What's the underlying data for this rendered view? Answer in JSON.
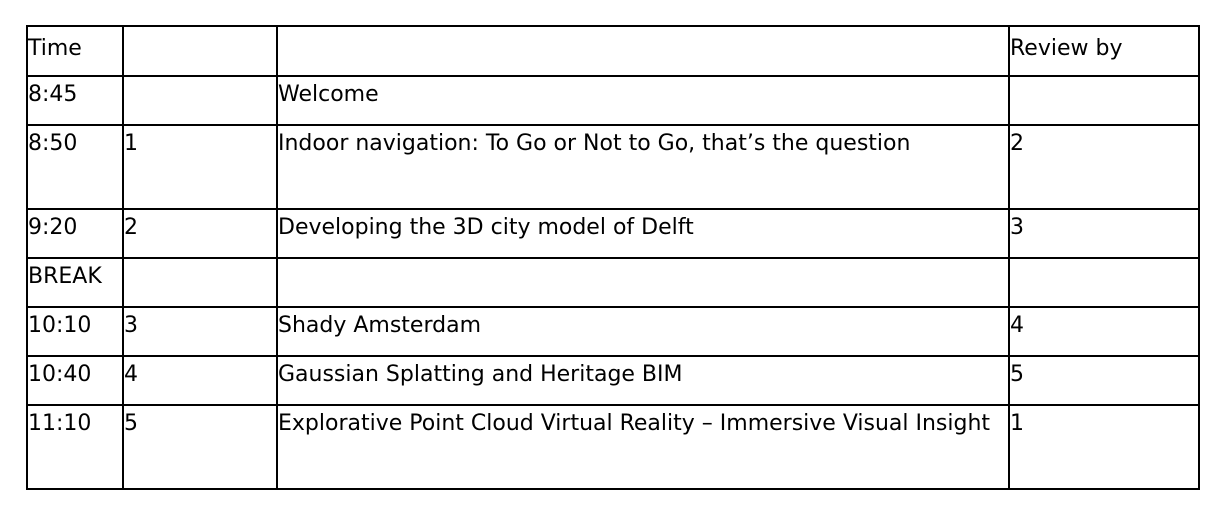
{
  "header": {
    "time": "Time",
    "number": "",
    "title": "",
    "review_by": "Review by"
  },
  "rows": [
    {
      "time": "8:45",
      "number": "",
      "title": "Welcome",
      "review_by": ""
    },
    {
      "time": "8:50",
      "number": "1",
      "title": "Indoor navigation: To Go or Not to Go, that’s the question",
      "review_by": "2"
    },
    {
      "time": "9:20",
      "number": "2",
      "title": "Developing the 3D city model of Delft",
      "review_by": "3"
    },
    {
      "time": "BREAK",
      "number": "",
      "title": "",
      "review_by": ""
    },
    {
      "time": "10:10",
      "number": "3",
      "title": "Shady Amsterdam",
      "review_by": "4"
    },
    {
      "time": "10:40",
      "number": "4",
      "title": "Gaussian Splatting and Heritage BIM",
      "review_by": "5"
    },
    {
      "time": "11:10",
      "number": "5",
      "title": "Explorative Point Cloud Virtual Reality – Immersive Visual Insight",
      "review_by": "1"
    }
  ]
}
